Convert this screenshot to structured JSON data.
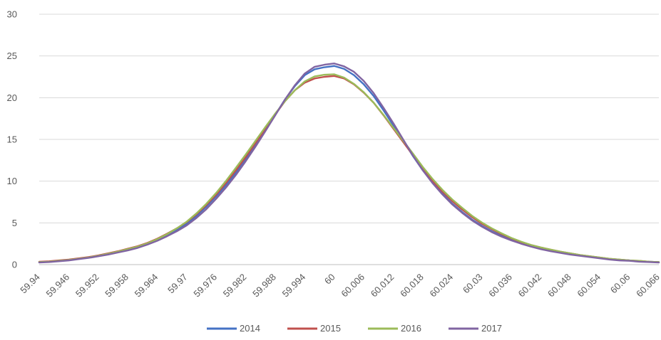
{
  "chart_data": {
    "type": "line",
    "title": "",
    "xlabel": "",
    "ylabel": "",
    "x": [
      59.94,
      59.942,
      59.944,
      59.946,
      59.948,
      59.95,
      59.952,
      59.954,
      59.956,
      59.958,
      59.96,
      59.962,
      59.964,
      59.966,
      59.968,
      59.97,
      59.972,
      59.974,
      59.976,
      59.978,
      59.98,
      59.982,
      59.984,
      59.986,
      59.988,
      59.99,
      59.992,
      59.994,
      59.996,
      59.998,
      60,
      60.002,
      60.004,
      60.006,
      60.008,
      60.01,
      60.012,
      60.014,
      60.016,
      60.018,
      60.02,
      60.022,
      60.024,
      60.026,
      60.028,
      60.03,
      60.032,
      60.034,
      60.036,
      60.038,
      60.04,
      60.042,
      60.044,
      60.046,
      60.048,
      60.05,
      60.052,
      60.054,
      60.056,
      60.058,
      60.06,
      60.062,
      60.064,
      60.066
    ],
    "x_tick_labels": [
      "59.94",
      "59.946",
      "59.952",
      "59.958",
      "59.964",
      "59.97",
      "59.976",
      "59.982",
      "59.988",
      "59.994",
      "60",
      "60.006",
      "60.012",
      "60.018",
      "60.024",
      "60.03",
      "60.036",
      "60.042",
      "60.048",
      "60.054",
      "60.06",
      "60.066"
    ],
    "y_tick_labels": [
      "0",
      "5",
      "10",
      "15",
      "20",
      "25",
      "30"
    ],
    "ylim": [
      0,
      30
    ],
    "grid": "horizontal",
    "legend_position": "bottom",
    "series": [
      {
        "name": "2014",
        "color": "#4472C4",
        "values": [
          0.3,
          0.35,
          0.45,
          0.55,
          0.7,
          0.85,
          1.05,
          1.25,
          1.5,
          1.75,
          2.05,
          2.45,
          2.95,
          3.5,
          4.15,
          4.9,
          5.85,
          6.95,
          8.2,
          9.55,
          11.0,
          12.6,
          14.3,
          16.1,
          17.95,
          19.8,
          21.4,
          22.7,
          23.4,
          23.65,
          23.8,
          23.45,
          22.7,
          21.6,
          20.2,
          18.5,
          16.7,
          14.9,
          13.0,
          11.3,
          9.8,
          8.5,
          7.3,
          6.3,
          5.4,
          4.65,
          4.0,
          3.45,
          2.95,
          2.55,
          2.2,
          1.9,
          1.65,
          1.45,
          1.25,
          1.1,
          0.95,
          0.8,
          0.65,
          0.55,
          0.5,
          0.4,
          0.35,
          0.3
        ]
      },
      {
        "name": "2015",
        "color": "#C0504D",
        "values": [
          0.35,
          0.4,
          0.5,
          0.6,
          0.75,
          0.9,
          1.1,
          1.35,
          1.6,
          1.9,
          2.2,
          2.6,
          3.1,
          3.7,
          4.35,
          5.1,
          6.05,
          7.15,
          8.4,
          9.8,
          11.3,
          12.9,
          14.6,
          16.3,
          18.0,
          19.6,
          20.9,
          21.8,
          22.3,
          22.5,
          22.6,
          22.3,
          21.6,
          20.6,
          19.4,
          17.9,
          16.3,
          14.7,
          13.1,
          11.5,
          10.05,
          8.75,
          7.6,
          6.6,
          5.7,
          4.9,
          4.25,
          3.65,
          3.15,
          2.7,
          2.35,
          2.05,
          1.8,
          1.55,
          1.35,
          1.15,
          1.0,
          0.85,
          0.7,
          0.6,
          0.5,
          0.45,
          0.35,
          0.3
        ]
      },
      {
        "name": "2016",
        "color": "#9BBB59",
        "values": [
          0.3,
          0.35,
          0.45,
          0.55,
          0.7,
          0.85,
          1.05,
          1.3,
          1.55,
          1.85,
          2.15,
          2.55,
          3.05,
          3.65,
          4.35,
          5.15,
          6.15,
          7.3,
          8.6,
          10.05,
          11.6,
          13.2,
          14.85,
          16.5,
          18.1,
          19.6,
          20.9,
          21.95,
          22.55,
          22.75,
          22.8,
          22.4,
          21.65,
          20.65,
          19.4,
          17.95,
          16.4,
          14.85,
          13.3,
          11.7,
          10.25,
          8.95,
          7.8,
          6.8,
          5.85,
          5.05,
          4.35,
          3.75,
          3.2,
          2.75,
          2.35,
          2.05,
          1.8,
          1.55,
          1.35,
          1.15,
          1.0,
          0.85,
          0.7,
          0.6,
          0.5,
          0.45,
          0.35,
          0.3
        ]
      },
      {
        "name": "2017",
        "color": "#8064A2",
        "values": [
          0.25,
          0.3,
          0.4,
          0.5,
          0.65,
          0.8,
          1.0,
          1.2,
          1.45,
          1.7,
          2.0,
          2.4,
          2.85,
          3.4,
          4.0,
          4.7,
          5.6,
          6.65,
          7.9,
          9.25,
          10.75,
          12.4,
          14.15,
          16.0,
          17.9,
          19.8,
          21.5,
          22.9,
          23.7,
          23.95,
          24.1,
          23.75,
          23.1,
          22.0,
          20.55,
          18.8,
          16.95,
          15.0,
          13.05,
          11.3,
          9.75,
          8.4,
          7.2,
          6.2,
          5.3,
          4.55,
          3.9,
          3.35,
          2.9,
          2.5,
          2.15,
          1.85,
          1.6,
          1.4,
          1.2,
          1.05,
          0.9,
          0.75,
          0.6,
          0.5,
          0.45,
          0.35,
          0.3,
          0.25
        ]
      }
    ]
  }
}
